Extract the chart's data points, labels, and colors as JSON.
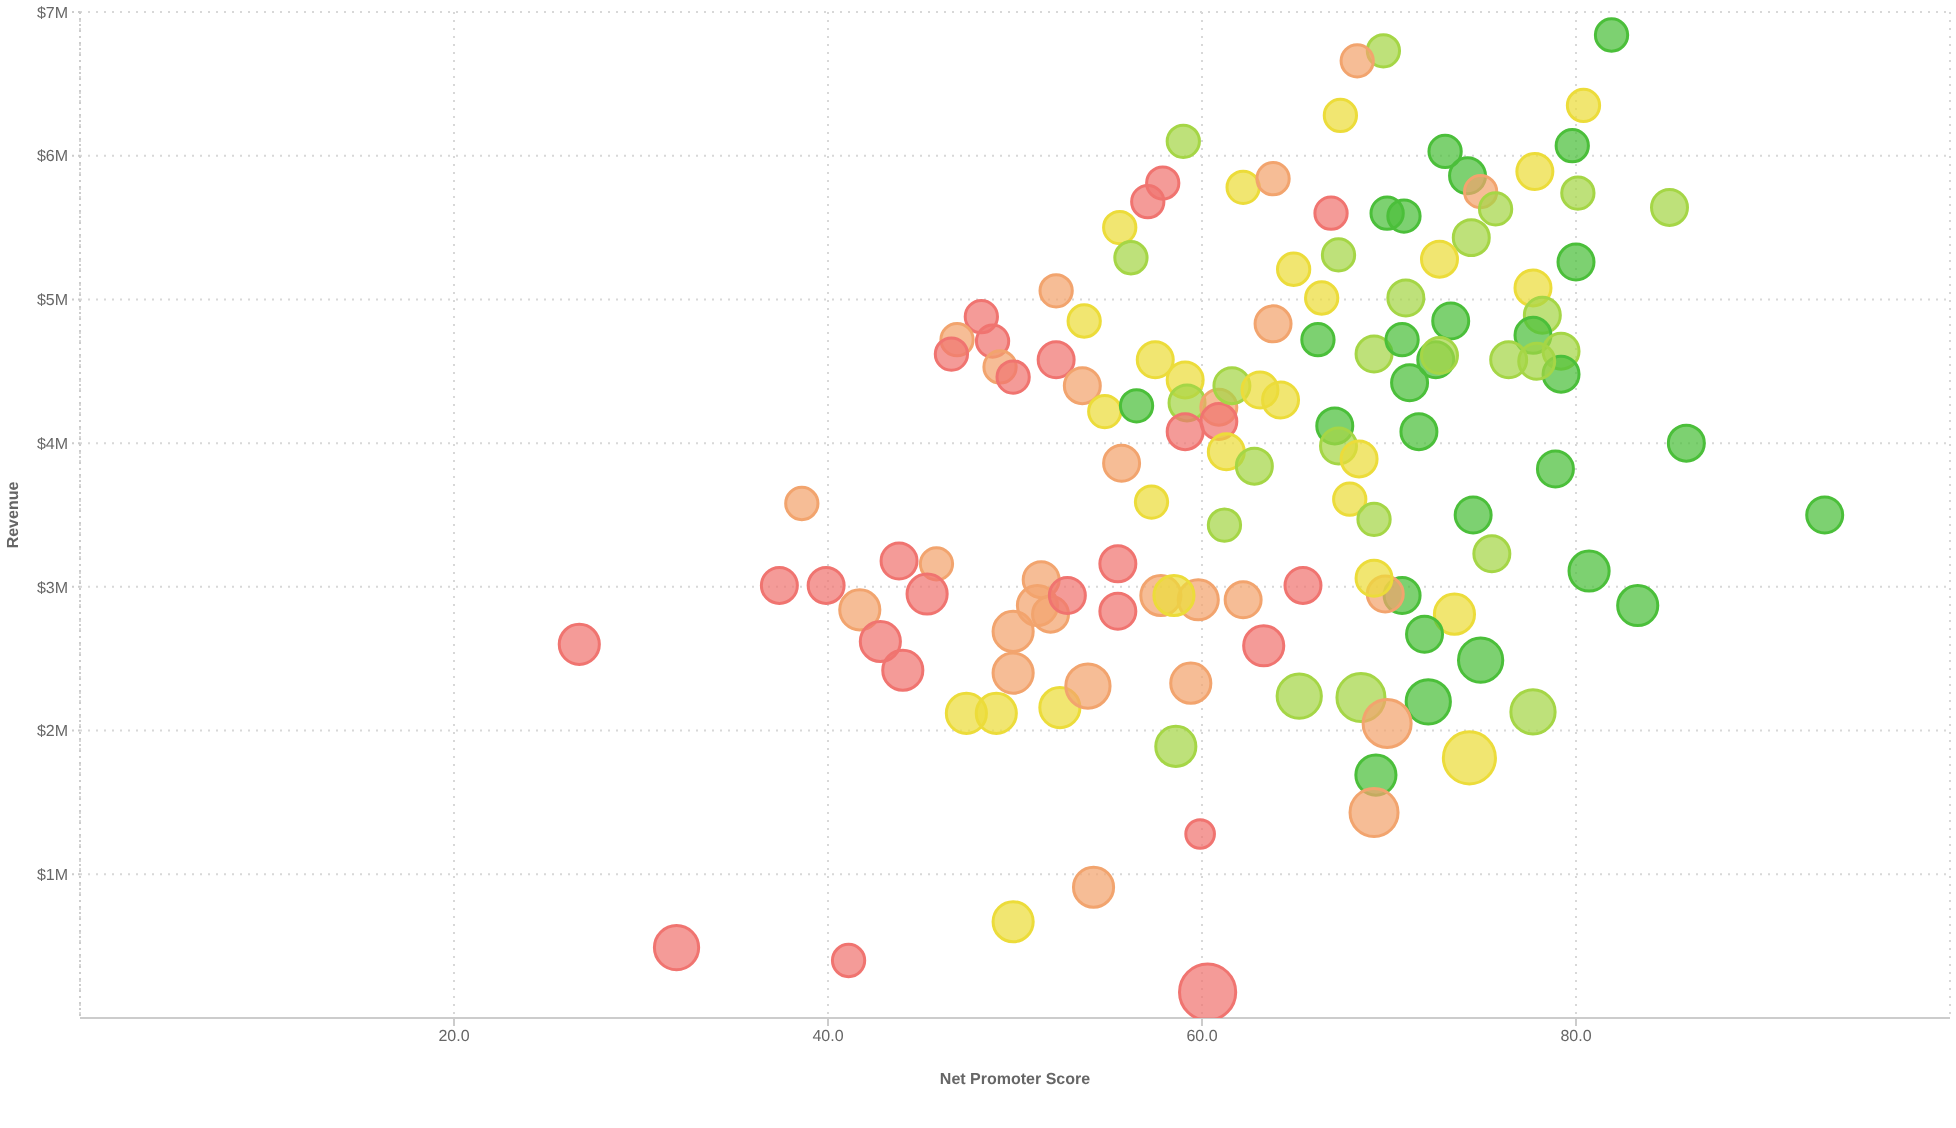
{
  "chart_data": {
    "type": "bubble",
    "xlabel": "Net Promoter Score",
    "ylabel": "Revenue",
    "xlim": [
      0,
      100
    ],
    "ylim": [
      0,
      7
    ],
    "xticks": [
      {
        "value": 20,
        "label": "20.0"
      },
      {
        "value": 40,
        "label": "40.0"
      },
      {
        "value": 60,
        "label": "60.0"
      },
      {
        "value": 80,
        "label": "80.0"
      }
    ],
    "yticks": [
      {
        "value": 1,
        "label": "$1M"
      },
      {
        "value": 2,
        "label": "$2M"
      },
      {
        "value": 3,
        "label": "$3M"
      },
      {
        "value": 4,
        "label": "$4M"
      },
      {
        "value": 5,
        "label": "$5M"
      },
      {
        "value": 6,
        "label": "$6M"
      },
      {
        "value": 7,
        "label": "$7M"
      }
    ],
    "grid": true,
    "x": [
      26.7,
      31.9,
      38.6,
      37.4,
      39.9,
      41.1,
      41.7,
      42.8,
      43.8,
      44.0,
      45.8,
      45.3,
      47.4,
      49.0,
      49.9,
      49.9,
      49.9,
      51.4,
      51.2,
      51.9,
      52.8,
      52.4,
      53.9,
      54.2,
      55.5,
      55.5,
      55.7,
      57.3,
      58.6,
      59.9,
      60.3,
      59.4,
      63.3,
      65.4,
      62.2,
      59.8,
      57.8,
      58.5,
      70.7,
      69.8,
      69.2,
      61.2,
      67.9,
      69.2,
      78.9,
      93.3,
      74.5,
      75.5,
      80.7,
      83.3,
      73.5,
      71.9,
      74.9,
      72.1,
      77.7,
      68.5,
      65.2,
      69.9,
      74.3,
      69.3,
      69.2,
      69.7,
      68.3,
      67.4,
      59.0,
      57.9,
      57.1,
      55.6,
      56.2,
      62.2,
      63.8,
      66.9,
      69.9,
      70.8,
      67.3,
      64.9,
      66.4,
      52.2,
      53.7,
      48.2,
      46.9,
      46.6,
      48.8,
      49.2,
      49.9,
      52.2,
      53.6,
      54.8,
      56.5,
      57.5,
      59.1,
      59.2,
      60.9,
      60.9,
      59.1,
      61.6,
      63.1,
      64.2,
      63.8,
      66.2,
      69.2,
      61.3,
      62.8,
      67.1,
      67.3,
      68.4,
      81.9,
      80.4,
      79.8,
      73.0,
      74.2,
      74.9,
      75.7,
      77.8,
      80.1,
      85.0,
      74.4,
      72.7,
      80.0,
      77.7,
      70.9,
      73.3,
      78.2,
      77.7,
      79.2,
      79.2,
      76.4,
      77.9,
      70.7,
      72.5,
      72.7,
      71.1,
      71.6,
      85.9
    ],
    "values": [
      2.6,
      0.49,
      3.58,
      3.01,
      3.01,
      0.4,
      2.84,
      2.62,
      3.18,
      2.42,
      3.16,
      2.95,
      2.12,
      2.12,
      0.67,
      2.4,
      2.69,
      3.05,
      2.87,
      2.81,
      2.94,
      2.16,
      2.31,
      0.91,
      3.16,
      2.83,
      3.86,
      3.59,
      1.89,
      1.28,
      0.18,
      2.33,
      2.59,
      3.01,
      2.91,
      2.91,
      2.94,
      2.94,
      2.94,
      2.95,
      3.06,
      3.43,
      3.61,
      3.47,
      3.82,
      3.5,
      3.5,
      3.23,
      3.11,
      2.87,
      2.81,
      2.67,
      2.49,
      2.2,
      2.13,
      2.23,
      2.24,
      2.05,
      1.81,
      1.69,
      1.43,
      6.73,
      6.66,
      6.28,
      6.1,
      5.81,
      5.68,
      5.5,
      5.29,
      5.78,
      5.84,
      5.6,
      5.6,
      5.58,
      5.31,
      5.21,
      5.01,
      5.06,
      4.85,
      4.88,
      4.72,
      4.62,
      4.71,
      4.53,
      4.46,
      4.58,
      4.4,
      4.22,
      4.26,
      4.58,
      4.44,
      4.28,
      4.25,
      4.15,
      4.08,
      4.4,
      4.37,
      4.3,
      4.83,
      4.72,
      4.62,
      3.94,
      3.84,
      4.12,
      3.98,
      3.89,
      6.84,
      6.35,
      6.07,
      6.03,
      5.86,
      5.75,
      5.63,
      5.89,
      5.74,
      5.64,
      5.43,
      5.28,
      5.26,
      5.08,
      5.01,
      4.85,
      4.89,
      4.75,
      4.64,
      4.48,
      4.58,
      4.57,
      4.72,
      4.58,
      4.61,
      4.42,
      4.08,
      4.0
    ],
    "sizes": [
      0.51,
      0.62,
      0.33,
      0.41,
      0.41,
      0.33,
      0.51,
      0.51,
      0.41,
      0.51,
      0.33,
      0.51,
      0.51,
      0.51,
      0.51,
      0.51,
      0.51,
      0.41,
      0.51,
      0.41,
      0.41,
      0.51,
      0.62,
      0.51,
      0.41,
      0.41,
      0.41,
      0.33,
      0.51,
      0.26,
      1,
      0.51,
      0.51,
      0.41,
      0.41,
      0.51,
      0.51,
      0.51,
      0.41,
      0.41,
      0.41,
      0.33,
      0.33,
      0.33,
      0.41,
      0.41,
      0.41,
      0.41,
      0.51,
      0.51,
      0.51,
      0.41,
      0.62,
      0.62,
      0.62,
      0.73,
      0.62,
      0.73,
      0.86,
      0.51,
      0.73,
      0.33,
      0.33,
      0.33,
      0.33,
      0.33,
      0.33,
      0.33,
      0.33,
      0.33,
      0.33,
      0.33,
      0.33,
      0.33,
      0.33,
      0.33,
      0.33,
      0.33,
      0.33,
      0.33,
      0.33,
      0.33,
      0.33,
      0.33,
      0.33,
      0.41,
      0.41,
      0.33,
      0.33,
      0.41,
      0.41,
      0.41,
      0.41,
      0.41,
      0.41,
      0.41,
      0.41,
      0.41,
      0.41,
      0.33,
      0.41,
      0.41,
      0.41,
      0.41,
      0.41,
      0.41,
      0.33,
      0.33,
      0.33,
      0.33,
      0.41,
      0.33,
      0.33,
      0.41,
      0.33,
      0.41,
      0.41,
      0.41,
      0.41,
      0.41,
      0.41,
      0.41,
      0.41,
      0.41,
      0.41,
      0.41,
      0.41,
      0.41,
      0.33,
      0.41,
      0.41,
      0.41,
      0.41,
      0.41
    ],
    "colors": [
      "#f07470",
      "#f07470",
      "#f2a46e",
      "#f07470",
      "#f07470",
      "#f07470",
      "#f2a46e",
      "#f07470",
      "#f07470",
      "#f07470",
      "#f2a46e",
      "#f07470",
      "#ecdc3a",
      "#ecdc3a",
      "#ecdc3a",
      "#f2a46e",
      "#f2a46e",
      "#f2a46e",
      "#f2a46e",
      "#f2a46e",
      "#f07470",
      "#ecdc3a",
      "#f2a46e",
      "#f2a46e",
      "#f07470",
      "#f07470",
      "#f2a46e",
      "#ecdc3a",
      "#a5d646",
      "#f07470",
      "#f07470",
      "#f2a46e",
      "#f07470",
      "#f07470",
      "#f2a46e",
      "#f2a46e",
      "#f2a46e",
      "#ecdc3a",
      "#4bbf3a",
      "#f2a46e",
      "#ecdc3a",
      "#a5d646",
      "#ecdc3a",
      "#a5d646",
      "#4bbf3a",
      "#4bbf3a",
      "#4bbf3a",
      "#a5d646",
      "#4bbf3a",
      "#4bbf3a",
      "#ecdc3a",
      "#4bbf3a",
      "#4bbf3a",
      "#4bbf3a",
      "#a5d646",
      "#a5d646",
      "#a5d646",
      "#f2a46e",
      "#ecdc3a",
      "#4bbf3a",
      "#f2a46e",
      "#a5d646",
      "#f2a46e",
      "#ecdc3a",
      "#a5d646",
      "#f07470",
      "#f07470",
      "#ecdc3a",
      "#a5d646",
      "#ecdc3a",
      "#f2a46e",
      "#f07470",
      "#4bbf3a",
      "#4bbf3a",
      "#a5d646",
      "#ecdc3a",
      "#ecdc3a",
      "#f2a46e",
      "#ecdc3a",
      "#f07470",
      "#f2a46e",
      "#f07470",
      "#f07470",
      "#f2a46e",
      "#f07470",
      "#f07470",
      "#f2a46e",
      "#ecdc3a",
      "#4bbf3a",
      "#ecdc3a",
      "#ecdc3a",
      "#a5d646",
      "#f2a46e",
      "#f07470",
      "#f07470",
      "#a5d646",
      "#ecdc3a",
      "#ecdc3a",
      "#f2a46e",
      "#4bbf3a",
      "#a5d646",
      "#ecdc3a",
      "#a5d646",
      "#4bbf3a",
      "#a5d646",
      "#ecdc3a",
      "#4bbf3a",
      "#ecdc3a",
      "#4bbf3a",
      "#4bbf3a",
      "#4bbf3a",
      "#f2a46e",
      "#a5d646",
      "#ecdc3a",
      "#a5d646",
      "#a5d646",
      "#a5d646",
      "#ecdc3a",
      "#4bbf3a",
      "#ecdc3a",
      "#a5d646",
      "#4bbf3a",
      "#a5d646",
      "#4bbf3a",
      "#a5d646",
      "#4bbf3a",
      "#a5d646",
      "#a5d646",
      "#4bbf3a",
      "#4bbf3a",
      "#a5d646",
      "#4bbf3a",
      "#4bbf3a",
      "#4bbf3a"
    ]
  }
}
